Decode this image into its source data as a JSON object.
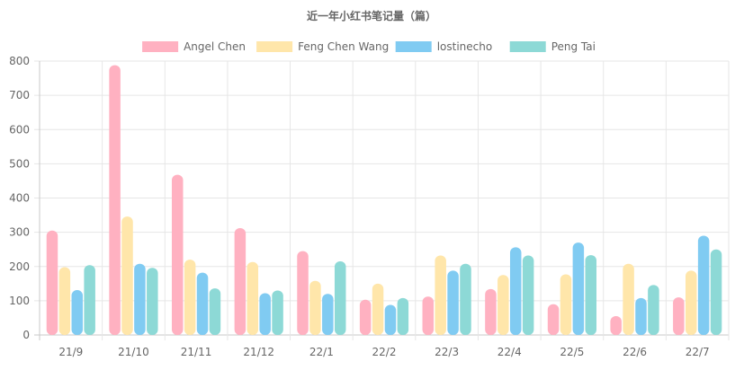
{
  "chart_data": {
    "type": "bar",
    "title": "近一年小红书笔记量（篇）",
    "categories": [
      "21/9",
      "21/10",
      "21/11",
      "21/12",
      "22/1",
      "22/2",
      "22/3",
      "22/4",
      "22/5",
      "22/6",
      "22/7"
    ],
    "series": [
      {
        "name": "Angel Chen",
        "color": "#ffb1c1",
        "values": [
          305,
          788,
          468,
          312,
          245,
          103,
          112,
          134,
          90,
          55,
          110
        ]
      },
      {
        "name": "Feng Chen Wang",
        "color": "#ffe6aa",
        "values": [
          198,
          346,
          220,
          213,
          158,
          150,
          232,
          175,
          177,
          208,
          188
        ]
      },
      {
        "name": "lostinecho",
        "color": "#80cbf2",
        "values": [
          131,
          208,
          182,
          122,
          120,
          88,
          188,
          256,
          270,
          108,
          290
        ]
      },
      {
        "name": "Peng Tai",
        "color": "#8dd9d6",
        "values": [
          204,
          196,
          136,
          130,
          215,
          108,
          208,
          232,
          233,
          146,
          250
        ]
      }
    ],
    "ylim": [
      0,
      800
    ],
    "yticks": [
      0,
      100,
      200,
      300,
      400,
      500,
      600,
      700,
      800
    ],
    "grid": true,
    "legend_position": "top"
  }
}
